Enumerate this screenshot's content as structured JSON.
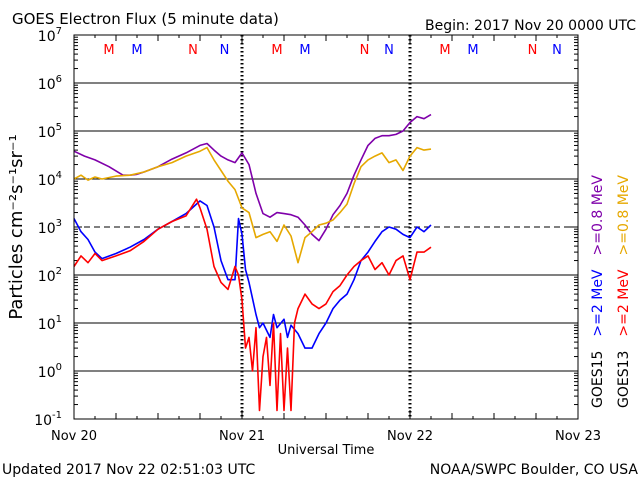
{
  "header": {
    "title": "GOES Electron Flux (5 minute data)",
    "begin": "Begin: 2017 Nov 20 0000 UTC"
  },
  "footer": {
    "updated": "Updated 2017 Nov 22 02:51:03 UTC",
    "credit": "NOAA/SWPC Boulder, CO USA"
  },
  "colors": {
    "goes15_2mev": "#0000ff",
    "goes15_08mev": "#7f00aa",
    "goes13_2mev": "#ff0000",
    "goes13_08mev": "#e6a800",
    "marker_m_goes13": "#ff0000",
    "marker_m_goes15": "#0000ff"
  },
  "chart_data": {
    "type": "line",
    "title": "GOES Electron Flux (5 minute data)",
    "xlabel": "Universal Time",
    "ylabel": "Particles cm⁻²s⁻¹sr⁻¹",
    "x_unit": "hours since 2017 Nov 20 0000 UTC",
    "xlim": [
      0,
      72
    ],
    "x_ticks": [
      {
        "value": 0,
        "label": "Nov 20"
      },
      {
        "value": 24,
        "label": "Nov 21"
      },
      {
        "value": 48,
        "label": "Nov 22"
      },
      {
        "value": 72,
        "label": "Nov 23"
      }
    ],
    "y_scale": "log",
    "ylim": [
      0.1,
      10000000
    ],
    "y_ticks": [
      {
        "value": 0.1,
        "base": "10",
        "exp": "-1"
      },
      {
        "value": 1,
        "base": "10",
        "exp": "0"
      },
      {
        "value": 10,
        "base": "10",
        "exp": "1"
      },
      {
        "value": 100,
        "base": "10",
        "exp": "2"
      },
      {
        "value": 1000,
        "base": "10",
        "exp": "3"
      },
      {
        "value": 10000,
        "base": "10",
        "exp": "4"
      },
      {
        "value": 100000,
        "base": "10",
        "exp": "5"
      },
      {
        "value": 1000000,
        "base": "10",
        "exp": "6"
      },
      {
        "value": 10000000,
        "base": "10",
        "exp": "7"
      }
    ],
    "threshold_line": 1000,
    "dotted_verticals_hours": [
      24,
      48
    ],
    "markers": [
      {
        "hour": 5,
        "text": "M",
        "sat": "goes13"
      },
      {
        "hour": 9,
        "text": "M",
        "sat": "goes15"
      },
      {
        "hour": 17,
        "text": "N",
        "sat": "goes13"
      },
      {
        "hour": 21.5,
        "text": "N",
        "sat": "goes15"
      },
      {
        "hour": 29,
        "text": "M",
        "sat": "goes13"
      },
      {
        "hour": 33,
        "text": "M",
        "sat": "goes15"
      },
      {
        "hour": 41.5,
        "text": "N",
        "sat": "goes13"
      },
      {
        "hour": 45,
        "text": "N",
        "sat": "goes15"
      },
      {
        "hour": 53,
        "text": "M",
        "sat": "goes13"
      },
      {
        "hour": 57,
        "text": "M",
        "sat": "goes15"
      },
      {
        "hour": 65.5,
        "text": "N",
        "sat": "goes13"
      },
      {
        "hour": 69,
        "text": "N",
        "sat": "goes15"
      }
    ],
    "legend": {
      "columns": [
        {
          "sat": "GOES15",
          "entries": [
            {
              "label": ">=2 MeV",
              "series": "goes15_2mev"
            },
            {
              "label": ">=0.8 MeV",
              "series": "goes15_08mev"
            }
          ]
        },
        {
          "sat": "GOES13",
          "entries": [
            {
              "label": ">=2 MeV",
              "series": "goes13_2mev"
            },
            {
              "label": ">=0.8 MeV",
              "series": "goes13_08mev"
            }
          ]
        }
      ]
    },
    "series": [
      {
        "key": "goes15_08mev",
        "name": "GOES15 >=0.8 MeV",
        "x": [
          0,
          1.5,
          3,
          5,
          7,
          8,
          9,
          10,
          12,
          14,
          16,
          18,
          19,
          20,
          21,
          22,
          23,
          24,
          25,
          26,
          27,
          28,
          29,
          30,
          31,
          32,
          33,
          34,
          35,
          36,
          37,
          38,
          39,
          40,
          41,
          42,
          43,
          44,
          45,
          46,
          47,
          48,
          49,
          50,
          51
        ],
        "values": [
          38000,
          30000,
          25000,
          18000,
          12000,
          12000,
          12500,
          14000,
          18000,
          26000,
          35000,
          50000,
          55000,
          40000,
          30000,
          25000,
          22000,
          35000,
          20000,
          5000,
          1900,
          1600,
          2000,
          1900,
          1800,
          1600,
          1100,
          700,
          520,
          900,
          1800,
          2800,
          5000,
          12000,
          25000,
          50000,
          70000,
          80000,
          80000,
          85000,
          100000,
          150000,
          200000,
          180000,
          220000
        ]
      },
      {
        "key": "goes13_08mev",
        "name": "GOES13 >=0.8 MeV",
        "x": [
          0,
          1,
          2,
          3,
          4,
          6,
          8,
          10,
          12,
          14,
          16,
          18,
          19,
          20,
          21,
          22,
          23,
          24,
          25,
          26,
          27,
          28,
          29,
          30,
          31,
          32,
          33,
          34,
          35,
          36,
          37,
          38,
          39,
          40,
          41,
          42,
          43,
          44,
          45,
          46,
          47,
          48,
          49,
          50,
          51
        ],
        "values": [
          10000,
          12000,
          9500,
          11000,
          10000,
          11500,
          12000,
          14000,
          18000,
          22000,
          30000,
          38000,
          45000,
          25000,
          15000,
          9000,
          6000,
          2500,
          2000,
          600,
          700,
          800,
          500,
          1100,
          650,
          180,
          600,
          800,
          1100,
          1200,
          1400,
          2000,
          3000,
          8000,
          18000,
          25000,
          30000,
          35000,
          22000,
          25000,
          15000,
          30000,
          45000,
          40000,
          42000
        ]
      },
      {
        "key": "goes15_2mev",
        "name": "GOES15 >=2 MeV",
        "x": [
          0,
          1,
          2,
          3,
          4,
          6,
          8,
          10,
          12,
          14,
          16,
          18,
          19,
          20,
          21,
          22,
          23,
          23.5,
          24,
          24.5,
          25,
          26,
          26.5,
          27,
          28,
          28.5,
          29,
          30,
          30.5,
          31,
          32,
          33,
          34,
          35,
          36,
          37,
          38,
          39,
          40,
          41,
          42,
          43,
          44,
          45,
          46,
          47,
          48,
          49,
          50,
          51
        ],
        "values": [
          1500,
          800,
          550,
          300,
          220,
          280,
          380,
          550,
          900,
          1300,
          1900,
          3500,
          2800,
          1000,
          200,
          80,
          80,
          1500,
          700,
          130,
          70,
          15,
          8,
          10,
          5,
          15,
          8,
          12,
          5,
          9,
          6,
          3,
          3,
          6,
          10,
          20,
          30,
          40,
          80,
          200,
          300,
          500,
          800,
          1000,
          900,
          700,
          600,
          1000,
          800,
          1100
        ]
      },
      {
        "key": "goes13_2mev",
        "name": "GOES13 >=2 MeV",
        "x": [
          0,
          1,
          2,
          3,
          4,
          6,
          8,
          10,
          12,
          14,
          16,
          17.5,
          18,
          19,
          20,
          21,
          22,
          23,
          23.5,
          24,
          24.5,
          25,
          25.5,
          26,
          26.5,
          27,
          27.5,
          28,
          28.5,
          29,
          29.5,
          30,
          30.5,
          31,
          31.5,
          32,
          33,
          34,
          35,
          36,
          37,
          38,
          39,
          40,
          41,
          42,
          43,
          44,
          45,
          46,
          47,
          48,
          49,
          50,
          51
        ],
        "values": [
          150,
          250,
          180,
          280,
          200,
          250,
          320,
          500,
          900,
          1300,
          1700,
          3800,
          2500,
          900,
          150,
          70,
          50,
          150,
          100,
          30,
          3,
          5,
          1,
          8,
          0.15,
          2,
          5,
          0.5,
          10,
          0.15,
          6,
          0.15,
          3,
          0.15,
          10,
          20,
          40,
          25,
          20,
          25,
          45,
          60,
          100,
          150,
          200,
          250,
          130,
          180,
          100,
          200,
          250,
          80,
          300,
          300,
          380
        ]
      }
    ]
  }
}
